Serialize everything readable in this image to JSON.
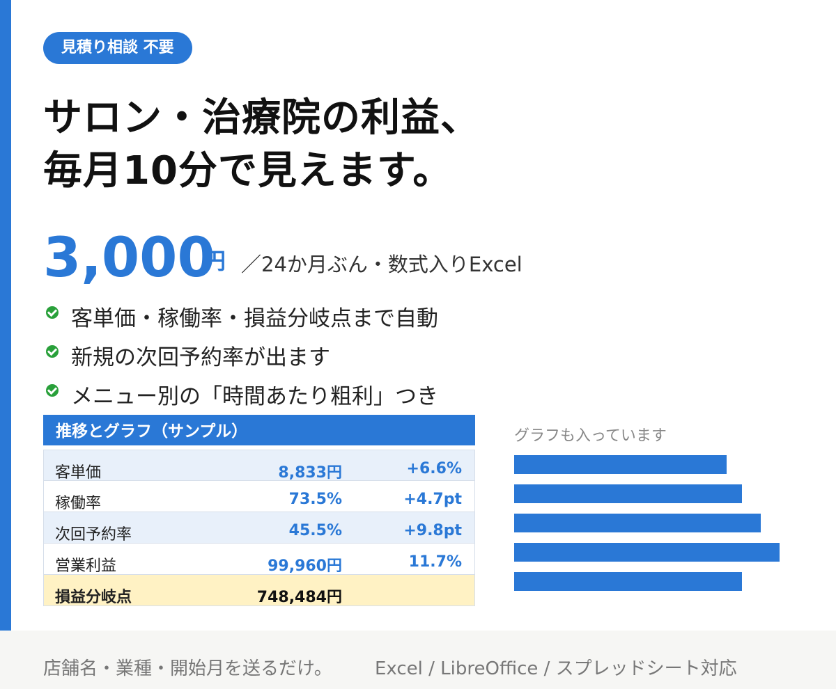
{
  "badge": "見積り相談 不要",
  "headline": {
    "line1": "サロン・治療院の利益、",
    "line2": "毎月10分で見えます。"
  },
  "price": {
    "amount": "3,000",
    "unit": "円",
    "note": "／24か月ぶん・数式入りExcel"
  },
  "features": [
    "客単価・稼働率・損益分岐点まで自動",
    "新規の次回予約率が出ます",
    "メニュー別の「時間あたり粗利」つき"
  ],
  "table": {
    "title": "推移とグラフ（サンプル）",
    "rows": [
      {
        "label": "客単価",
        "value": "8,833円",
        "delta": "+6.6%"
      },
      {
        "label": "稼働率",
        "value": "73.5%",
        "delta": "+4.7pt"
      },
      {
        "label": "次回予約率",
        "value": "45.5%",
        "delta": "+9.8pt"
      },
      {
        "label": "営業利益",
        "value": "99,960円",
        "delta": "11.7%"
      }
    ],
    "total": {
      "label": "損益分岐点",
      "value": "748,484円"
    }
  },
  "chart": {
    "caption": "グラフも入っています",
    "bar_color": "#2a78d6"
  },
  "chart_data": {
    "type": "bar",
    "orientation": "horizontal",
    "values": [
      305,
      327,
      354,
      381,
      327
    ],
    "grid": false
  },
  "footer": {
    "left": "店舗名・業種・開始月を送るだけ。",
    "right": "Excel / LibreOffice / スプレッドシート対応"
  },
  "colors": {
    "accent": "#2a78d6",
    "check": "#29a03a",
    "total_row": "#fff2c4"
  }
}
